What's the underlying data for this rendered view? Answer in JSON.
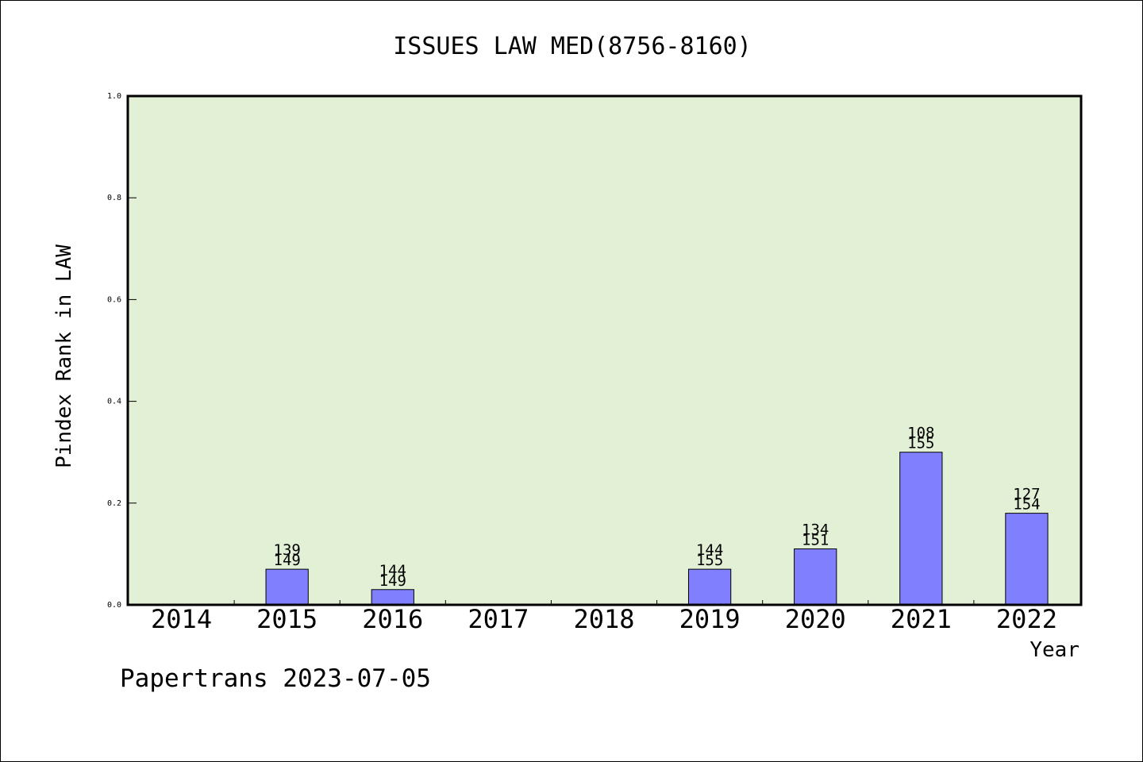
{
  "chart_data": {
    "type": "bar",
    "title": "ISSUES LAW MED(8756-8160)",
    "xlabel": "Year",
    "ylabel": "Pindex Rank in LAW",
    "ylim": [
      0,
      1.0
    ],
    "yticks": [
      "0.0",
      "0.2",
      "0.4",
      "0.6",
      "0.8",
      "1.0"
    ],
    "categories": [
      "2014",
      "2015",
      "2016",
      "2017",
      "2018",
      "2019",
      "2020",
      "2021",
      "2022"
    ],
    "values": [
      0,
      0.07,
      0.03,
      0,
      0,
      0.07,
      0.11,
      0.3,
      0.18
    ],
    "labels": [
      null,
      [
        "139",
        "149"
      ],
      [
        "144",
        "149"
      ],
      null,
      null,
      [
        "144",
        "155"
      ],
      [
        "134",
        "151"
      ],
      [
        "108",
        "155"
      ],
      [
        "127",
        "154"
      ]
    ],
    "grid": false,
    "colors": {
      "plot_background": "#e2f0d6",
      "bar_fill": "#8080ff",
      "bar_stroke": "#000000"
    }
  },
  "footer": "Papertrans 2023-07-05"
}
